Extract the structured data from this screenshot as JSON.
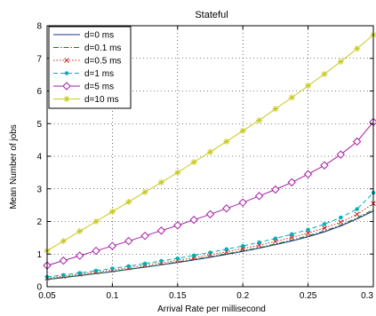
{
  "chart_data": {
    "type": "line",
    "title": "Stateful",
    "xlabel": "Arrival Rate per millisecond",
    "ylabel": "Mean Number of jobs",
    "xlim": [
      0.05,
      0.3
    ],
    "ylim": [
      0,
      8
    ],
    "xticks": [
      0.05,
      0.1,
      0.15,
      0.2,
      0.25,
      0.3
    ],
    "yticks": [
      0,
      1,
      2,
      3,
      4,
      5,
      6,
      7,
      8
    ],
    "xtick_labels": [
      "0.05",
      "0.1",
      "0.15",
      "0.2",
      "0.25",
      "0.3"
    ],
    "ytick_labels": [
      "0",
      "1",
      "2",
      "3",
      "4",
      "5",
      "6",
      "7",
      "8"
    ],
    "grid": true,
    "legend_position": "top-left",
    "x": [
      0.05,
      0.0625,
      0.075,
      0.0875,
      0.1,
      0.1125,
      0.125,
      0.1375,
      0.15,
      0.1625,
      0.175,
      0.1875,
      0.2,
      0.2125,
      0.225,
      0.2375,
      0.25,
      0.2625,
      0.275,
      0.2875,
      0.3
    ],
    "series": [
      {
        "name": "d=0 ms",
        "color": "#1f2f8f",
        "dash": "",
        "marker": "none",
        "values": [
          0.22,
          0.28,
          0.34,
          0.4,
          0.46,
          0.53,
          0.6,
          0.67,
          0.74,
          0.82,
          0.9,
          0.99,
          1.08,
          1.18,
          1.29,
          1.4,
          1.53,
          1.68,
          1.86,
          2.08,
          2.32
        ]
      },
      {
        "name": "d=0.1 ms",
        "color": "#1a7a1a",
        "dash": "6 2 1.5 2",
        "marker": "none",
        "values": [
          0.23,
          0.29,
          0.35,
          0.41,
          0.47,
          0.54,
          0.61,
          0.68,
          0.76,
          0.84,
          0.92,
          1.01,
          1.1,
          1.2,
          1.31,
          1.43,
          1.56,
          1.71,
          1.89,
          2.11,
          2.36
        ]
      },
      {
        "name": "d=0.5 ms",
        "color": "#cc2222",
        "dash": "1.5 2",
        "marker": "x",
        "values": [
          0.26,
          0.32,
          0.38,
          0.45,
          0.51,
          0.58,
          0.66,
          0.73,
          0.81,
          0.89,
          0.98,
          1.07,
          1.17,
          1.27,
          1.39,
          1.51,
          1.64,
          1.8,
          1.98,
          2.22,
          2.55
        ]
      },
      {
        "name": "d=1 ms",
        "color": "#00b0b8",
        "dash": "5 3",
        "marker": "dot",
        "values": [
          0.3,
          0.36,
          0.42,
          0.49,
          0.56,
          0.63,
          0.71,
          0.79,
          0.87,
          0.96,
          1.05,
          1.15,
          1.25,
          1.36,
          1.48,
          1.61,
          1.75,
          1.92,
          2.12,
          2.38,
          2.88
        ]
      },
      {
        "name": "d=5 ms",
        "color": "#a81ea8",
        "dash": "",
        "marker": "diamond",
        "values": [
          0.65,
          0.8,
          0.95,
          1.1,
          1.25,
          1.4,
          1.56,
          1.72,
          1.88,
          2.05,
          2.22,
          2.4,
          2.58,
          2.78,
          2.98,
          3.2,
          3.45,
          3.72,
          4.05,
          4.45,
          5.05
        ]
      },
      {
        "name": "d=10 ms",
        "color": "#c9c91c",
        "dash": "",
        "marker": "star",
        "values": [
          1.1,
          1.4,
          1.7,
          2.0,
          2.3,
          2.6,
          2.9,
          3.2,
          3.5,
          3.82,
          4.13,
          4.45,
          4.78,
          5.1,
          5.45,
          5.8,
          6.16,
          6.52,
          6.9,
          7.3,
          7.72
        ]
      }
    ]
  }
}
